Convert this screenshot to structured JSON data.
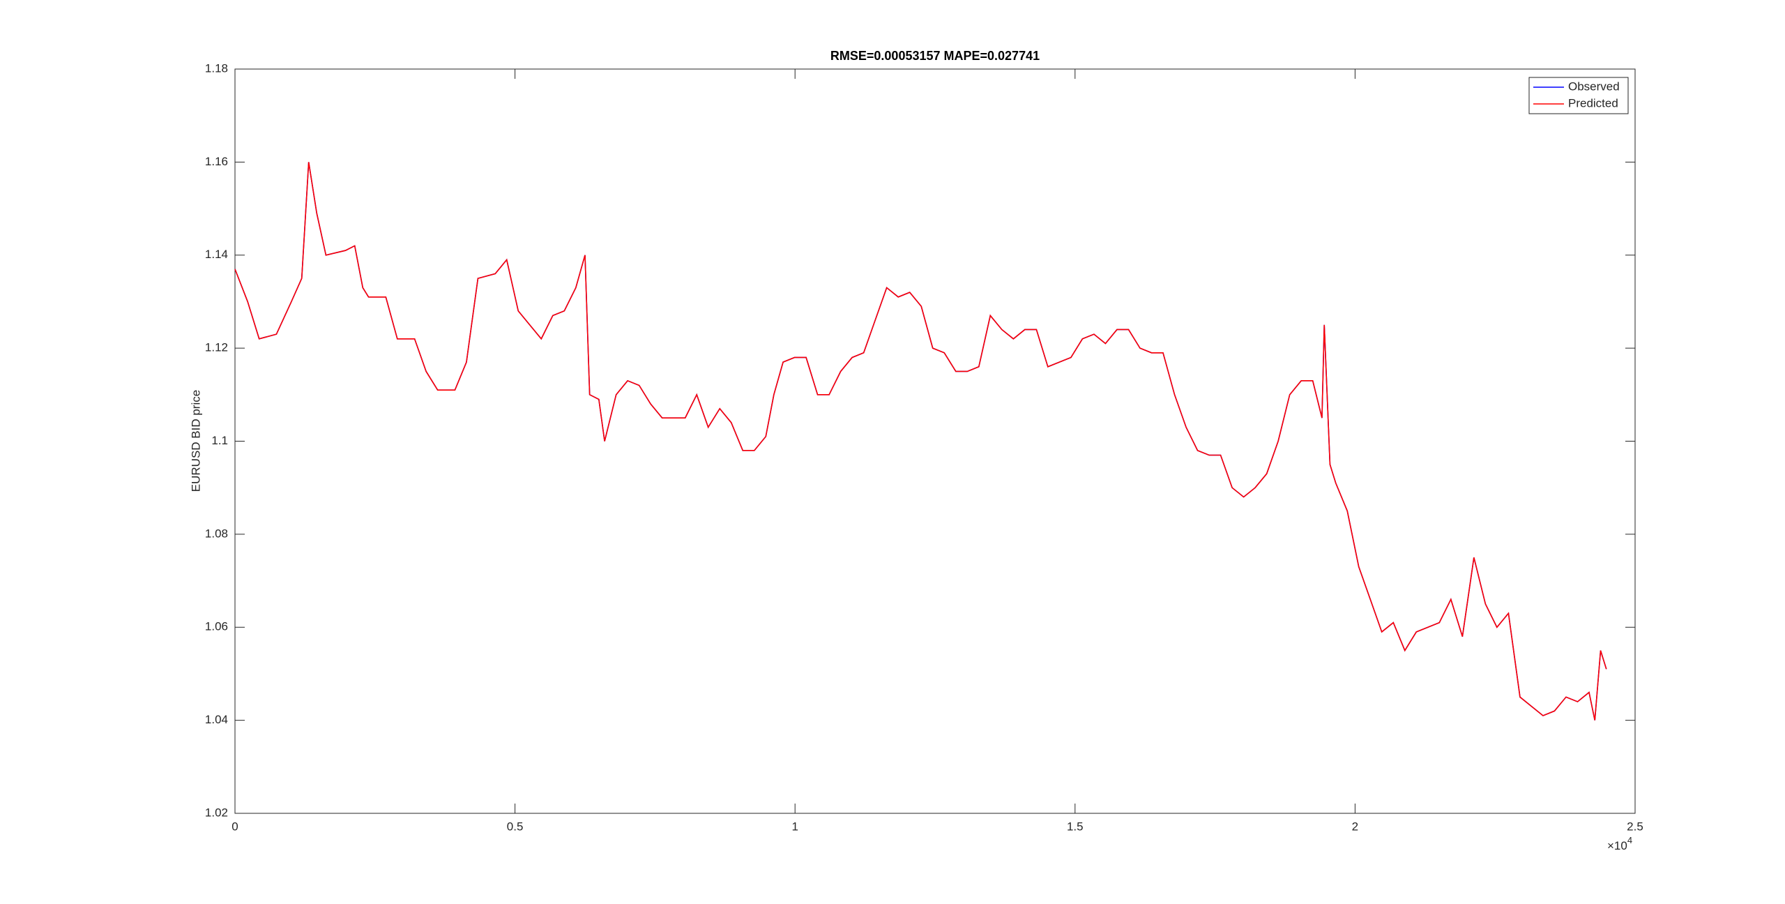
{
  "chart_data": {
    "type": "line",
    "title": "RMSE=0.00053157 MAPE=0.027741",
    "y_label": "EURUSD BID price",
    "x_exponent": {
      "base": "×10",
      "power": "4"
    },
    "xlim": [
      0,
      25000
    ],
    "xticks": [
      0,
      {
        "value": 5000,
        "label": "0.5"
      },
      {
        "value": 10000,
        "label": "1"
      },
      {
        "value": 15000,
        "label": "1.5"
      },
      {
        "value": 20000,
        "label": "2"
      },
      {
        "value": 25000,
        "label": "2.5"
      }
    ],
    "ylim": [
      1.02,
      1.18
    ],
    "yticks": [
      1.02,
      1.04,
      1.06,
      1.08,
      1.1,
      1.12,
      1.14,
      1.16,
      1.18
    ],
    "grid": false,
    "legend": "top-right",
    "x": [
      0,
      226,
      432,
      740,
      1007,
      1192,
      1316,
      1460,
      1624,
      1974,
      2138,
      2282,
      2385,
      2693,
      2899,
      3207,
      3413,
      3619,
      3927,
      4133,
      4338,
      4647,
      4852,
      5058,
      5263,
      5469,
      5675,
      5880,
      6086,
      6250,
      6333,
      6497,
      6600,
      6806,
      7011,
      7217,
      7422,
      7628,
      7834,
      8039,
      8245,
      8450,
      8656,
      8861,
      9067,
      9273,
      9478,
      9622,
      9787,
      9992,
      10198,
      10403,
      10609,
      10815,
      11020,
      11226,
      11431,
      11637,
      11843,
      12048,
      12254,
      12459,
      12665,
      12871,
      13076,
      13282,
      13487,
      13693,
      13899,
      14104,
      14310,
      14515,
      14721,
      14927,
      15132,
      15338,
      15543,
      15749,
      15955,
      16160,
      16366,
      16571,
      16777,
      16983,
      17188,
      17394,
      17599,
      17805,
      18011,
      18216,
      18422,
      18627,
      18833,
      19039,
      19244,
      19409,
      19450,
      19552,
      19655,
      19861,
      20066,
      20272,
      20477,
      20683,
      20889,
      21094,
      21300,
      21505,
      21711,
      21917,
      22122,
      22328,
      22533,
      22739,
      22945,
      23150,
      23356,
      23561,
      23767,
      23973,
      24178,
      24281,
      24384,
      24487
    ],
    "series": [
      {
        "name": "Observed",
        "color": "#0000ff",
        "values": [
          1.137,
          1.13,
          1.122,
          1.123,
          1.13,
          1.135,
          1.16,
          1.149,
          1.14,
          1.141,
          1.142,
          1.133,
          1.131,
          1.131,
          1.122,
          1.122,
          1.115,
          1.111,
          1.111,
          1.117,
          1.135,
          1.136,
          1.139,
          1.128,
          1.125,
          1.122,
          1.127,
          1.128,
          1.133,
          1.14,
          1.11,
          1.109,
          1.1,
          1.11,
          1.113,
          1.112,
          1.108,
          1.105,
          1.105,
          1.105,
          1.11,
          1.103,
          1.107,
          1.104,
          1.098,
          1.098,
          1.101,
          1.11,
          1.117,
          1.118,
          1.118,
          1.11,
          1.11,
          1.115,
          1.118,
          1.119,
          1.126,
          1.133,
          1.131,
          1.132,
          1.129,
          1.12,
          1.119,
          1.115,
          1.115,
          1.116,
          1.127,
          1.124,
          1.122,
          1.124,
          1.124,
          1.116,
          1.117,
          1.118,
          1.122,
          1.123,
          1.121,
          1.124,
          1.124,
          1.12,
          1.119,
          1.119,
          1.11,
          1.103,
          1.098,
          1.097,
          1.097,
          1.09,
          1.088,
          1.09,
          1.093,
          1.1,
          1.11,
          1.113,
          1.113,
          1.105,
          1.125,
          1.095,
          1.091,
          1.085,
          1.073,
          1.066,
          1.059,
          1.061,
          1.055,
          1.059,
          1.06,
          1.061,
          1.066,
          1.058,
          1.075,
          1.065,
          1.06,
          1.063,
          1.045,
          1.043,
          1.041,
          1.042,
          1.045,
          1.044,
          1.046,
          1.04,
          1.055,
          1.051
        ]
      },
      {
        "name": "Predicted",
        "color": "#ff0000",
        "values": [
          1.137,
          1.13,
          1.122,
          1.123,
          1.13,
          1.135,
          1.16,
          1.149,
          1.14,
          1.141,
          1.142,
          1.133,
          1.131,
          1.131,
          1.122,
          1.122,
          1.115,
          1.111,
          1.111,
          1.117,
          1.135,
          1.136,
          1.139,
          1.128,
          1.125,
          1.122,
          1.127,
          1.128,
          1.133,
          1.14,
          1.11,
          1.109,
          1.1,
          1.11,
          1.113,
          1.112,
          1.108,
          1.105,
          1.105,
          1.105,
          1.11,
          1.103,
          1.107,
          1.104,
          1.098,
          1.098,
          1.101,
          1.11,
          1.117,
          1.118,
          1.118,
          1.11,
          1.11,
          1.115,
          1.118,
          1.119,
          1.126,
          1.133,
          1.131,
          1.132,
          1.129,
          1.12,
          1.119,
          1.115,
          1.115,
          1.116,
          1.127,
          1.124,
          1.122,
          1.124,
          1.124,
          1.116,
          1.117,
          1.118,
          1.122,
          1.123,
          1.121,
          1.124,
          1.124,
          1.12,
          1.119,
          1.119,
          1.11,
          1.103,
          1.098,
          1.097,
          1.097,
          1.09,
          1.088,
          1.09,
          1.093,
          1.1,
          1.11,
          1.113,
          1.113,
          1.105,
          1.125,
          1.095,
          1.091,
          1.085,
          1.073,
          1.066,
          1.059,
          1.061,
          1.055,
          1.059,
          1.06,
          1.061,
          1.066,
          1.058,
          1.075,
          1.065,
          1.06,
          1.063,
          1.045,
          1.043,
          1.041,
          1.042,
          1.045,
          1.044,
          1.046,
          1.04,
          1.055,
          1.051
        ]
      }
    ]
  }
}
